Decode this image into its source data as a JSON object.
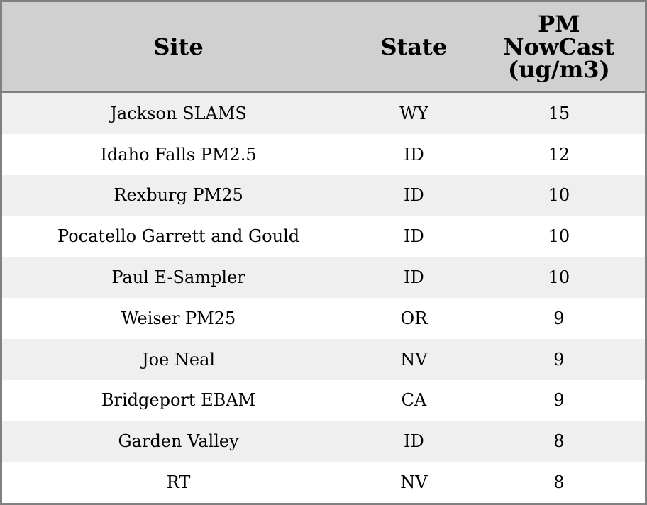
{
  "table": {
    "headers": [
      "Site",
      "State",
      "PM NowCast (ug/m3)"
    ],
    "rows": [
      [
        "Jackson SLAMS",
        "WY",
        "15"
      ],
      [
        "Idaho Falls PM2.5",
        "ID",
        "12"
      ],
      [
        "Rexburg PM25",
        "ID",
        "10"
      ],
      [
        "Pocatello Garrett and Gould",
        "ID",
        "10"
      ],
      [
        "Paul E-Sampler",
        "ID",
        "10"
      ],
      [
        "Weiser PM25",
        "OR",
        "9"
      ],
      [
        "Joe Neal",
        "NV",
        "9"
      ],
      [
        "Bridgeport EBAM",
        "CA",
        "9"
      ],
      [
        "Garden Valley",
        "ID",
        "8"
      ],
      [
        "RT",
        "NV",
        "8"
      ]
    ]
  },
  "colors": {
    "header_bg": "#d0d0d0",
    "stripe_bg": "#efefef",
    "border": "#808080"
  }
}
